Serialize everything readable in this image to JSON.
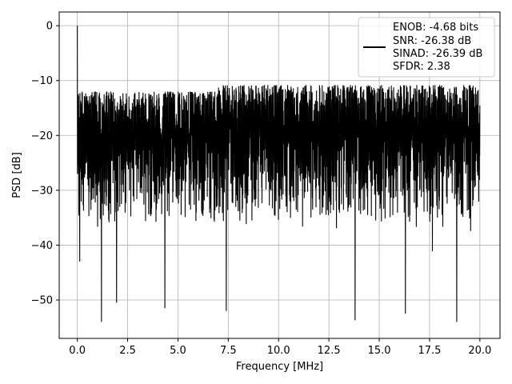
{
  "chart_data": {
    "type": "line",
    "xlabel": "Frequency [MHz]",
    "ylabel": "PSD [dB]",
    "xlim": [
      -0.9,
      21.0
    ],
    "ylim": [
      -57,
      2.5
    ],
    "xticks": [
      0.0,
      2.5,
      5.0,
      7.5,
      10.0,
      12.5,
      15.0,
      17.5,
      20.0
    ],
    "xtick_labels": [
      "0.0",
      "2.5",
      "5.0",
      "7.5",
      "10.0",
      "12.5",
      "15.0",
      "17.5",
      "20.0"
    ],
    "yticks": [
      0,
      -10,
      -20,
      -30,
      -40,
      -50
    ],
    "ytick_labels": [
      "0",
      "−10",
      "−20",
      "−30",
      "−40",
      "−50"
    ],
    "grid": true,
    "legend_position": "upper right",
    "series_color": "#000000",
    "legend": {
      "lines": [
        "ENOB: -4.68 bits",
        "SNR: -26.38 dB",
        "SINAD: -26.39 dB",
        "SFDR: 2.38"
      ]
    },
    "x_range": [
      0.0,
      20.0
    ],
    "typical_upper_envelope_db": -11,
    "typical_lower_envelope_db": -36,
    "notable_points": [
      {
        "x": 0.0,
        "y": 0.0
      },
      {
        "x": 0.02,
        "y": -27
      },
      {
        "x": 0.12,
        "y": -43
      },
      {
        "x": 1.2,
        "y": -54
      },
      {
        "x": 1.95,
        "y": -50.5
      },
      {
        "x": 4.35,
        "y": -51.5
      },
      {
        "x": 7.4,
        "y": -52
      },
      {
        "x": 13.8,
        "y": -53.7
      },
      {
        "x": 16.3,
        "y": -52.5
      },
      {
        "x": 18.85,
        "y": -54
      }
    ]
  }
}
